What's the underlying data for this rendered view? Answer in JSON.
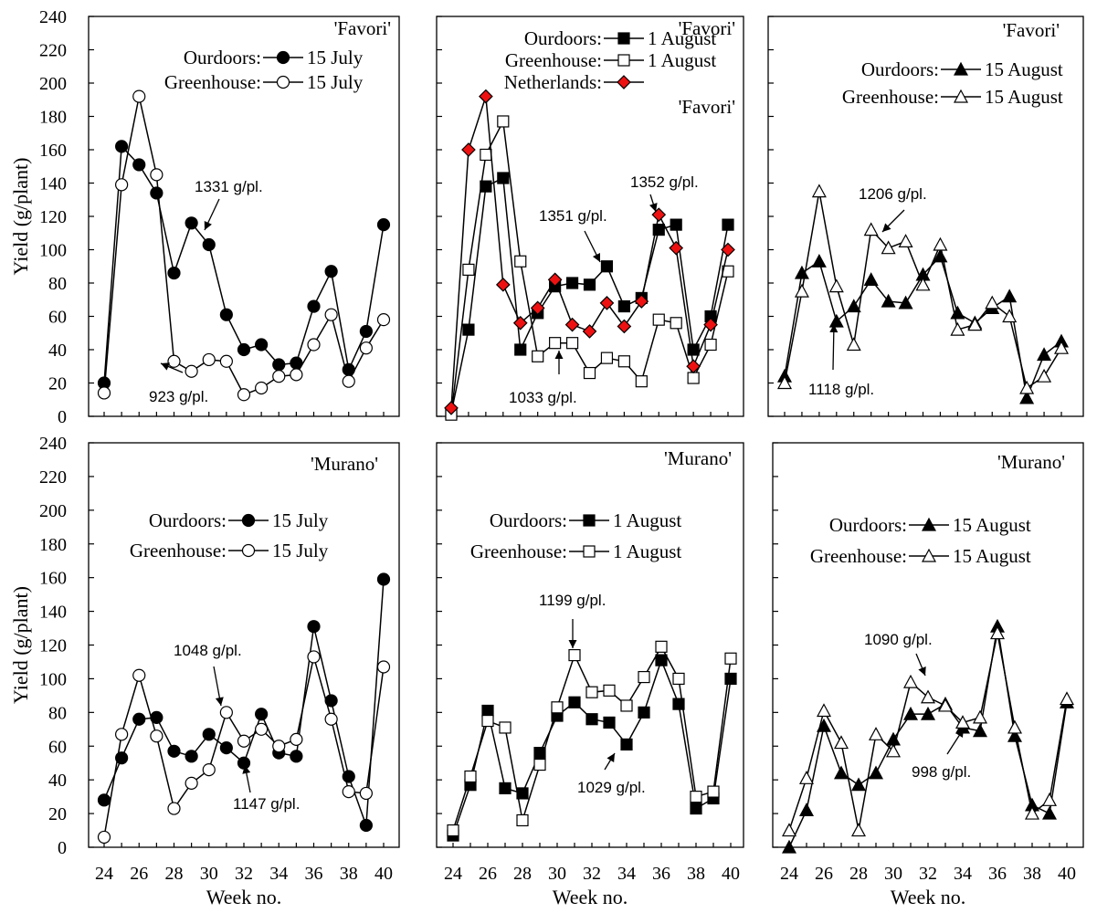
{
  "chart_data": [
    {
      "type": "line",
      "cultivar": "'Favori'",
      "legend": [
        {
          "label": "Ourdoors:",
          "date": "15 July",
          "marker": "circle",
          "fill": "#000000"
        },
        {
          "label": "Greenhouse:",
          "date": "15 July",
          "marker": "circle",
          "fill": "#ffffff"
        }
      ],
      "series": [
        {
          "name": "Ourdoors 15 July",
          "marker": "circle",
          "fill": "#000000",
          "x": [
            24,
            25,
            26,
            27,
            28,
            29,
            30,
            31,
            32,
            33,
            34,
            35,
            36,
            37,
            38,
            39,
            40
          ],
          "y": [
            20,
            162,
            151,
            134,
            86,
            116,
            103,
            61,
            40,
            43,
            31,
            32,
            66,
            87,
            28,
            51,
            115
          ]
        },
        {
          "name": "Greenhouse 15 July",
          "marker": "circle",
          "fill": "#ffffff",
          "x": [
            24,
            25,
            26,
            27,
            28,
            29,
            30,
            31,
            32,
            33,
            34,
            35,
            36,
            37,
            38,
            39,
            40
          ],
          "y": [
            14,
            139,
            192,
            145,
            33,
            27,
            34,
            33,
            13,
            17,
            24,
            25,
            43,
            61,
            21,
            41,
            58
          ]
        }
      ],
      "annotations": [
        "1331 g/pl.",
        "923 g/pl."
      ],
      "ylabel": "Yield (g/plant)",
      "xlabel": "",
      "ylim": [
        0,
        240
      ],
      "xlim": [
        23,
        41
      ]
    },
    {
      "type": "line",
      "cultivar": "'Favori'",
      "legend": [
        {
          "label": "Ourdoors:",
          "date": "1 August",
          "marker": "square",
          "fill": "#000000"
        },
        {
          "label": "Greenhouse:",
          "date": "1 August",
          "marker": "square",
          "fill": "#ffffff"
        },
        {
          "label": "Netherlands:",
          "date": "",
          "marker": "diamond",
          "fill": "#ee1111"
        }
      ],
      "series": [
        {
          "name": "Ourdoors 1 August",
          "marker": "square",
          "fill": "#000000",
          "x": [
            24,
            25,
            26,
            27,
            28,
            29,
            30,
            31,
            32,
            33,
            34,
            35,
            36,
            37,
            38,
            39,
            40
          ],
          "y": [
            2,
            52,
            138,
            143,
            40,
            62,
            78,
            80,
            79,
            90,
            66,
            71,
            112,
            115,
            40,
            60,
            115
          ]
        },
        {
          "name": "Greenhouse 1 August",
          "marker": "square",
          "fill": "#ffffff",
          "x": [
            24,
            25,
            26,
            27,
            28,
            29,
            30,
            31,
            32,
            33,
            34,
            35,
            36,
            37,
            38,
            39,
            40
          ],
          "y": [
            1,
            88,
            157,
            177,
            93,
            36,
            44,
            44,
            26,
            35,
            33,
            21,
            58,
            56,
            23,
            43,
            87
          ]
        },
        {
          "name": "Netherlands",
          "marker": "diamond",
          "fill": "#ee1111",
          "x": [
            24,
            25,
            26,
            27,
            28,
            29,
            30,
            31,
            32,
            33,
            34,
            35,
            36,
            37,
            38,
            39,
            40
          ],
          "y": [
            5,
            160,
            192,
            79,
            56,
            65,
            82,
            55,
            51,
            68,
            54,
            69,
            121,
            101,
            30,
            55,
            100
          ]
        }
      ],
      "annotations": [
        "1352 g/pl.",
        "1351 g/pl.",
        "1033 g/pl."
      ],
      "ylabel": "",
      "xlabel": "",
      "ylim": [
        0,
        240
      ],
      "xlim": [
        23,
        41
      ]
    },
    {
      "type": "line",
      "cultivar": "'Favori'",
      "legend": [
        {
          "label": "Ourdoors:",
          "date": "15 August",
          "marker": "triangle",
          "fill": "#000000"
        },
        {
          "label": "Greenhouse:",
          "date": "15 August",
          "marker": "triangle",
          "fill": "#ffffff"
        }
      ],
      "series": [
        {
          "name": "Ourdoors 15 August",
          "marker": "triangle",
          "fill": "#000000",
          "x": [
            24,
            25,
            26,
            27,
            28,
            29,
            30,
            31,
            32,
            33,
            34,
            35,
            36,
            37,
            38,
            39,
            40
          ],
          "y": [
            24,
            86,
            93,
            57,
            66,
            82,
            69,
            68,
            85,
            96,
            62,
            56,
            65,
            72,
            11,
            37,
            45
          ]
        },
        {
          "name": "Greenhouse 15 August",
          "marker": "triangle",
          "fill": "#ffffff",
          "x": [
            24,
            25,
            26,
            27,
            28,
            29,
            30,
            31,
            32,
            33,
            34,
            35,
            36,
            37,
            38,
            39,
            40
          ],
          "y": [
            20,
            75,
            135,
            78,
            43,
            112,
            101,
            105,
            79,
            103,
            52,
            55,
            68,
            60,
            17,
            24,
            41
          ]
        }
      ],
      "annotations": [
        "1206 g/pl.",
        "1118 g/pl."
      ],
      "ylabel": "",
      "xlabel": "",
      "ylim": [
        0,
        240
      ],
      "xlim": [
        23,
        41
      ]
    },
    {
      "type": "line",
      "cultivar": "'Murano'",
      "legend": [
        {
          "label": "Ourdoors:",
          "date": "15 July",
          "marker": "circle",
          "fill": "#000000"
        },
        {
          "label": "Greenhouse:",
          "date": "15 July",
          "marker": "circle",
          "fill": "#ffffff"
        }
      ],
      "series": [
        {
          "name": "Ourdoors 15 July",
          "marker": "circle",
          "fill": "#000000",
          "x": [
            24,
            25,
            26,
            27,
            28,
            29,
            30,
            31,
            32,
            33,
            34,
            35,
            36,
            37,
            38,
            39,
            40
          ],
          "y": [
            28,
            53,
            76,
            77,
            57,
            54,
            67,
            59,
            50,
            79,
            56,
            54,
            131,
            87,
            42,
            13,
            159
          ]
        },
        {
          "name": "Greenhouse 15 July",
          "marker": "circle",
          "fill": "#ffffff",
          "x": [
            24,
            25,
            26,
            27,
            28,
            29,
            30,
            31,
            32,
            33,
            34,
            35,
            36,
            37,
            38,
            39,
            40
          ],
          "y": [
            6,
            67,
            102,
            66,
            23,
            38,
            46,
            80,
            63,
            70,
            60,
            64,
            113,
            76,
            33,
            32,
            107
          ]
        }
      ],
      "annotations": [
        "1048 g/pl.",
        "1147 g/pl."
      ],
      "ylabel": "Yield (g/plant)",
      "xlabel": "Week no.",
      "ylim": [
        0,
        240
      ],
      "xlim": [
        23,
        41
      ]
    },
    {
      "type": "line",
      "cultivar": "'Murano'",
      "legend": [
        {
          "label": "Ourdoors:",
          "date": "1 August",
          "marker": "square",
          "fill": "#000000"
        },
        {
          "label": "Greenhouse:",
          "date": "1 August",
          "marker": "square",
          "fill": "#ffffff"
        }
      ],
      "series": [
        {
          "name": "Ourdoors 1 August",
          "marker": "square",
          "fill": "#000000",
          "x": [
            24,
            25,
            26,
            27,
            28,
            29,
            30,
            31,
            32,
            33,
            34,
            35,
            36,
            37,
            38,
            39,
            40
          ],
          "y": [
            7,
            37,
            81,
            35,
            32,
            56,
            78,
            86,
            76,
            74,
            61,
            80,
            111,
            85,
            23,
            29,
            100
          ]
        },
        {
          "name": "Greenhouse 1 August",
          "marker": "square",
          "fill": "#ffffff",
          "x": [
            24,
            25,
            26,
            27,
            28,
            29,
            30,
            31,
            32,
            33,
            34,
            35,
            36,
            37,
            38,
            39,
            40
          ],
          "y": [
            10,
            42,
            75,
            71,
            16,
            49,
            83,
            114,
            92,
            93,
            84,
            101,
            119,
            100,
            30,
            33,
            112
          ]
        }
      ],
      "annotations": [
        "1199 g/pl.",
        "1029 g/pl."
      ],
      "ylabel": "",
      "xlabel": "Week no.",
      "ylim": [
        0,
        240
      ],
      "xlim": [
        23,
        41
      ]
    },
    {
      "type": "line",
      "cultivar": "'Murano'",
      "legend": [
        {
          "label": "Ourdoors:",
          "date": "15 August",
          "marker": "triangle",
          "fill": "#000000"
        },
        {
          "label": "Greenhouse:",
          "date": "15 August",
          "marker": "triangle",
          "fill": "#ffffff"
        }
      ],
      "series": [
        {
          "name": "Ourdoors 15 August",
          "marker": "triangle",
          "fill": "#000000",
          "x": [
            24,
            25,
            26,
            27,
            28,
            29,
            30,
            31,
            32,
            33,
            34,
            35,
            36,
            37,
            38,
            39,
            40
          ],
          "y": [
            0,
            22,
            72,
            44,
            37,
            44,
            64,
            79,
            79,
            85,
            71,
            69,
            131,
            66,
            25,
            20,
            86
          ]
        },
        {
          "name": "Greenhouse 15 August",
          "marker": "triangle",
          "fill": "#ffffff",
          "x": [
            24,
            25,
            26,
            27,
            28,
            29,
            30,
            31,
            32,
            33,
            34,
            35,
            36,
            37,
            38,
            39,
            40
          ],
          "y": [
            10,
            41,
            81,
            62,
            10,
            67,
            57,
            98,
            89,
            84,
            74,
            77,
            127,
            71,
            20,
            28,
            88
          ]
        }
      ],
      "annotations": [
        "1090 g/pl.",
        "998 g/pl."
      ],
      "ylabel": "",
      "xlabel": "Week no.",
      "ylim": [
        0,
        240
      ],
      "xlim": [
        23,
        41
      ]
    }
  ],
  "axis": {
    "y_ticks": [
      "0",
      "20",
      "40",
      "60",
      "80",
      "100",
      "120",
      "140",
      "160",
      "180",
      "200",
      "220",
      "240"
    ],
    "x_ticks": [
      "24",
      "26",
      "28",
      "30",
      "32",
      "34",
      "36",
      "38",
      "40"
    ]
  }
}
